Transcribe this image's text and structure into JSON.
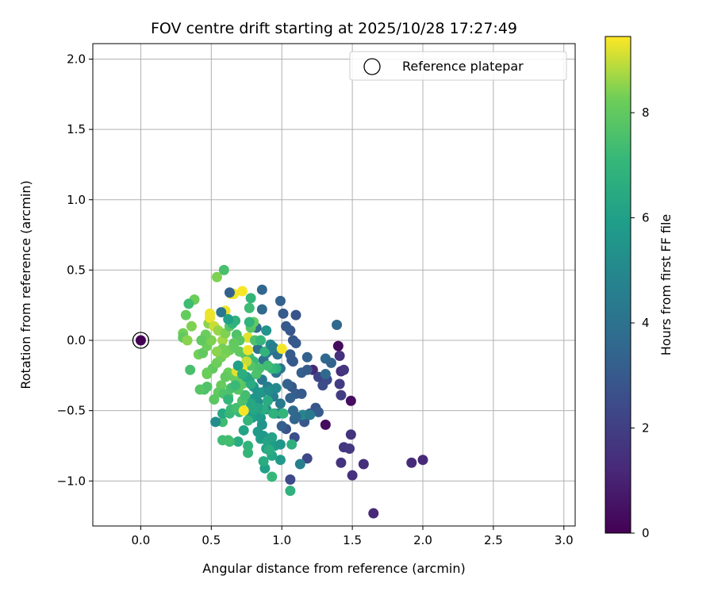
{
  "chart_data": {
    "type": "scatter",
    "title": "FOV centre drift starting at 2025/10/28 17:27:49",
    "xlabel": "Angular distance from reference (arcmin)",
    "ylabel": "Rotation from reference (arcmin)",
    "xlim": [
      -0.34,
      3.08
    ],
    "ylim": [
      -1.32,
      2.11
    ],
    "xticks": [
      0.0,
      0.5,
      1.0,
      1.5,
      2.0,
      2.5,
      3.0
    ],
    "xtick_labels": [
      "0.0",
      "0.5",
      "1.0",
      "1.5",
      "2.0",
      "2.5",
      "3.0"
    ],
    "yticks": [
      -1.0,
      -0.5,
      0.0,
      0.5,
      1.0,
      1.5,
      2.0
    ],
    "ytick_labels": [
      "−1.0",
      "−0.5",
      "0.0",
      "0.5",
      "1.0",
      "1.5",
      "2.0"
    ],
    "grid": true,
    "legend": {
      "position": "top-right",
      "entries": [
        "Reference platepar"
      ]
    },
    "colorbar": {
      "label": "Hours from first FF file",
      "range": [
        0,
        9.45
      ],
      "ticks": [
        0,
        2,
        4,
        6,
        8
      ],
      "tick_labels": [
        "0",
        "2",
        "4",
        "6",
        "8"
      ],
      "colormap": "viridis"
    },
    "reference_point": {
      "x": 0.0,
      "y": 0.0,
      "hours": 0.0
    },
    "points": [
      {
        "x": 1.65,
        "y": -1.23,
        "h": 1.2
      },
      {
        "x": 1.92,
        "y": -0.87,
        "h": 1.3
      },
      {
        "x": 2.0,
        "y": -0.85,
        "h": 1.2
      },
      {
        "x": 1.58,
        "y": -0.88,
        "h": 1.4
      },
      {
        "x": 1.5,
        "y": -0.96,
        "h": 1.5
      },
      {
        "x": 1.44,
        "y": -0.76,
        "h": 1.7
      },
      {
        "x": 1.48,
        "y": -0.77,
        "h": 1.8
      },
      {
        "x": 1.49,
        "y": -0.67,
        "h": 1.6
      },
      {
        "x": 1.42,
        "y": -0.87,
        "h": 1.6
      },
      {
        "x": 1.49,
        "y": -0.43,
        "h": 0.4
      },
      {
        "x": 1.31,
        "y": -0.6,
        "h": 0.3
      },
      {
        "x": 1.4,
        "y": -0.04,
        "h": 0.3
      },
      {
        "x": 1.42,
        "y": -0.22,
        "h": 1.4
      },
      {
        "x": 1.44,
        "y": -0.21,
        "h": 1.7
      },
      {
        "x": 1.42,
        "y": -0.39,
        "h": 1.9
      },
      {
        "x": 1.41,
        "y": -0.31,
        "h": 1.9
      },
      {
        "x": 1.41,
        "y": -0.11,
        "h": 1.5
      },
      {
        "x": 1.22,
        "y": -0.21,
        "h": 1.2
      },
      {
        "x": 1.26,
        "y": -0.26,
        "h": 2.2
      },
      {
        "x": 1.32,
        "y": -0.28,
        "h": 2.4
      },
      {
        "x": 1.29,
        "y": -0.32,
        "h": 2.5
      },
      {
        "x": 1.24,
        "y": -0.48,
        "h": 2.8
      },
      {
        "x": 1.26,
        "y": -0.51,
        "h": 3.0
      },
      {
        "x": 1.2,
        "y": -0.52,
        "h": 3.0
      },
      {
        "x": 1.16,
        "y": -0.58,
        "h": 2.9
      },
      {
        "x": 1.18,
        "y": -0.84,
        "h": 2.3
      },
      {
        "x": 1.06,
        "y": -0.99,
        "h": 2.4
      },
      {
        "x": 1.09,
        "y": -0.69,
        "h": 2.6
      },
      {
        "x": 1.03,
        "y": -0.63,
        "h": 2.7
      },
      {
        "x": 1.0,
        "y": -0.61,
        "h": 3.2
      },
      {
        "x": 1.13,
        "y": -0.88,
        "h": 4.6
      },
      {
        "x": 1.15,
        "y": -0.53,
        "h": 4.9
      },
      {
        "x": 1.2,
        "y": -0.53,
        "h": 4.3
      },
      {
        "x": 1.09,
        "y": -0.56,
        "h": 3.4
      },
      {
        "x": 1.1,
        "y": -0.54,
        "h": 3.5
      },
      {
        "x": 1.08,
        "y": -0.5,
        "h": 3.6
      },
      {
        "x": 1.06,
        "y": -0.41,
        "h": 3.3
      },
      {
        "x": 1.1,
        "y": -0.38,
        "h": 3.2
      },
      {
        "x": 1.14,
        "y": -0.38,
        "h": 3.0
      },
      {
        "x": 1.07,
        "y": -0.33,
        "h": 3.0
      },
      {
        "x": 1.04,
        "y": -0.31,
        "h": 3.3
      },
      {
        "x": 1.14,
        "y": -0.23,
        "h": 3.2
      },
      {
        "x": 1.18,
        "y": -0.21,
        "h": 3.1
      },
      {
        "x": 1.18,
        "y": -0.12,
        "h": 3.3
      },
      {
        "x": 1.31,
        "y": -0.24,
        "h": 3.6
      },
      {
        "x": 1.31,
        "y": -0.13,
        "h": 3.6
      },
      {
        "x": 1.35,
        "y": -0.16,
        "h": 3.4
      },
      {
        "x": 1.39,
        "y": 0.11,
        "h": 3.6
      },
      {
        "x": 1.1,
        "y": 0.18,
        "h": 2.8
      },
      {
        "x": 1.06,
        "y": 0.07,
        "h": 2.9
      },
      {
        "x": 1.08,
        "y": 0.0,
        "h": 2.9
      },
      {
        "x": 1.1,
        "y": -0.02,
        "h": 3.0
      },
      {
        "x": 1.06,
        "y": -0.1,
        "h": 3.1
      },
      {
        "x": 1.08,
        "y": -0.15,
        "h": 3.0
      },
      {
        "x": 1.07,
        "y": -0.14,
        "h": 3.0
      },
      {
        "x": 1.03,
        "y": 0.1,
        "h": 3.0
      },
      {
        "x": 1.01,
        "y": 0.19,
        "h": 3.1
      },
      {
        "x": 0.99,
        "y": 0.28,
        "h": 3.3
      },
      {
        "x": 0.86,
        "y": 0.36,
        "h": 3.5
      },
      {
        "x": 0.86,
        "y": 0.22,
        "h": 3.7
      },
      {
        "x": 0.82,
        "y": 0.09,
        "h": 3.8
      },
      {
        "x": 0.83,
        "y": -0.06,
        "h": 4.0
      },
      {
        "x": 0.87,
        "y": -0.14,
        "h": 4.1
      },
      {
        "x": 0.89,
        "y": -0.09,
        "h": 4.3
      },
      {
        "x": 0.92,
        "y": -0.07,
        "h": 4.2
      },
      {
        "x": 0.97,
        "y": -0.1,
        "h": 3.9
      },
      {
        "x": 0.99,
        "y": -0.2,
        "h": 4.2
      },
      {
        "x": 0.96,
        "y": -0.23,
        "h": 4.0
      },
      {
        "x": 0.86,
        "y": -0.28,
        "h": 4.3
      },
      {
        "x": 0.9,
        "y": -0.33,
        "h": 4.6
      },
      {
        "x": 0.94,
        "y": -0.4,
        "h": 4.5
      },
      {
        "x": 0.99,
        "y": -0.45,
        "h": 4.3
      },
      {
        "x": 0.95,
        "y": -0.52,
        "h": 4.6
      },
      {
        "x": 0.98,
        "y": -0.52,
        "h": 4.9
      },
      {
        "x": 0.89,
        "y": -0.49,
        "h": 5.1
      },
      {
        "x": 0.83,
        "y": -0.44,
        "h": 5.3
      },
      {
        "x": 0.82,
        "y": -0.4,
        "h": 5.5
      },
      {
        "x": 0.78,
        "y": -0.42,
        "h": 5.6
      },
      {
        "x": 0.8,
        "y": -0.33,
        "h": 5.7
      },
      {
        "x": 0.77,
        "y": -0.28,
        "h": 5.9
      },
      {
        "x": 0.83,
        "y": -0.37,
        "h": 5.5
      },
      {
        "x": 0.86,
        "y": -0.37,
        "h": 5.6
      },
      {
        "x": 0.91,
        "y": -0.36,
        "h": 5.2
      },
      {
        "x": 0.96,
        "y": -0.34,
        "h": 5.0
      },
      {
        "x": 0.77,
        "y": -0.51,
        "h": 5.8
      },
      {
        "x": 0.79,
        "y": -0.55,
        "h": 5.9
      },
      {
        "x": 0.82,
        "y": -0.53,
        "h": 6.0
      },
      {
        "x": 0.85,
        "y": -0.55,
        "h": 5.8
      },
      {
        "x": 0.86,
        "y": -0.6,
        "h": 5.5
      },
      {
        "x": 0.83,
        "y": -0.65,
        "h": 5.8
      },
      {
        "x": 0.85,
        "y": -0.7,
        "h": 6.0
      },
      {
        "x": 0.87,
        "y": -0.68,
        "h": 5.7
      },
      {
        "x": 0.89,
        "y": -0.77,
        "h": 6.1
      },
      {
        "x": 0.9,
        "y": -0.72,
        "h": 6.2
      },
      {
        "x": 0.93,
        "y": -0.69,
        "h": 6.1
      },
      {
        "x": 0.95,
        "y": -0.75,
        "h": 5.9
      },
      {
        "x": 0.99,
        "y": -0.74,
        "h": 5.6
      },
      {
        "x": 0.99,
        "y": -0.85,
        "h": 5.8
      },
      {
        "x": 0.93,
        "y": -0.82,
        "h": 6.3
      },
      {
        "x": 0.88,
        "y": -0.91,
        "h": 6.0
      },
      {
        "x": 0.87,
        "y": -0.86,
        "h": 6.5
      },
      {
        "x": 0.91,
        "y": -0.78,
        "h": 6.6
      },
      {
        "x": 0.93,
        "y": -0.97,
        "h": 7.1
      },
      {
        "x": 1.06,
        "y": -1.07,
        "h": 6.8
      },
      {
        "x": 1.07,
        "y": -0.74,
        "h": 6.7
      },
      {
        "x": 1.01,
        "y": -0.52,
        "h": 7.0
      },
      {
        "x": 0.94,
        "y": -0.52,
        "h": 6.8
      },
      {
        "x": 0.9,
        "y": -0.43,
        "h": 6.5
      },
      {
        "x": 0.87,
        "y": -0.49,
        "h": 6.6
      },
      {
        "x": 0.83,
        "y": -0.48,
        "h": 6.2
      },
      {
        "x": 0.8,
        "y": -0.49,
        "h": 6.3
      },
      {
        "x": 0.78,
        "y": -0.45,
        "h": 6.4
      },
      {
        "x": 0.76,
        "y": -0.57,
        "h": 7.0
      },
      {
        "x": 0.7,
        "y": -0.51,
        "h": 7.1
      },
      {
        "x": 0.73,
        "y": -0.64,
        "h": 6.2
      },
      {
        "x": 0.69,
        "y": -0.72,
        "h": 6.5
      },
      {
        "x": 0.76,
        "y": -0.75,
        "h": 6.9
      },
      {
        "x": 0.76,
        "y": -0.8,
        "h": 7.0
      },
      {
        "x": 0.63,
        "y": -0.72,
        "h": 7.2
      },
      {
        "x": 0.58,
        "y": -0.71,
        "h": 7.3
      },
      {
        "x": 0.62,
        "y": -0.71,
        "h": 7.4
      },
      {
        "x": 0.58,
        "y": -0.58,
        "h": 7.3
      },
      {
        "x": 0.53,
        "y": -0.58,
        "h": 5.2
      },
      {
        "x": 0.58,
        "y": -0.52,
        "h": 6.4
      },
      {
        "x": 0.63,
        "y": -0.52,
        "h": 7.1
      },
      {
        "x": 0.64,
        "y": -0.49,
        "h": 7.2
      },
      {
        "x": 0.68,
        "y": -0.48,
        "h": 7.4
      },
      {
        "x": 0.72,
        "y": -0.43,
        "h": 7.6
      },
      {
        "x": 0.74,
        "y": -0.39,
        "h": 7.4
      },
      {
        "x": 0.69,
        "y": -0.35,
        "h": 7.8
      },
      {
        "x": 0.72,
        "y": -0.31,
        "h": 7.9
      },
      {
        "x": 0.68,
        "y": -0.29,
        "h": 8.0
      },
      {
        "x": 0.66,
        "y": -0.26,
        "h": 8.1
      },
      {
        "x": 0.62,
        "y": -0.23,
        "h": 8.2
      },
      {
        "x": 0.6,
        "y": -0.26,
        "h": 8.0
      },
      {
        "x": 0.57,
        "y": -0.32,
        "h": 8.1
      },
      {
        "x": 0.55,
        "y": -0.37,
        "h": 8.0
      },
      {
        "x": 0.52,
        "y": -0.42,
        "h": 7.9
      },
      {
        "x": 0.47,
        "y": -0.33,
        "h": 7.7
      },
      {
        "x": 0.45,
        "y": -0.35,
        "h": 7.6
      },
      {
        "x": 0.42,
        "y": -0.35,
        "h": 7.8
      },
      {
        "x": 0.47,
        "y": -0.23,
        "h": 8.1
      },
      {
        "x": 0.51,
        "y": -0.2,
        "h": 8.0
      },
      {
        "x": 0.54,
        "y": -0.16,
        "h": 8.2
      },
      {
        "x": 0.57,
        "y": -0.12,
        "h": 8.3
      },
      {
        "x": 0.6,
        "y": -0.09,
        "h": 8.4
      },
      {
        "x": 0.63,
        "y": -0.07,
        "h": 8.3
      },
      {
        "x": 0.66,
        "y": -0.05,
        "h": 8.1
      },
      {
        "x": 0.7,
        "y": -0.08,
        "h": 8.0
      },
      {
        "x": 0.74,
        "y": -0.1,
        "h": 7.9
      },
      {
        "x": 0.77,
        "y": -0.12,
        "h": 7.4
      },
      {
        "x": 0.8,
        "y": -0.15,
        "h": 7.2
      },
      {
        "x": 0.84,
        "y": -0.2,
        "h": 7.5
      },
      {
        "x": 0.82,
        "y": -0.24,
        "h": 7.6
      },
      {
        "x": 0.78,
        "y": -0.18,
        "h": 7.7
      },
      {
        "x": 0.75,
        "y": -0.15,
        "h": 9.0
      },
      {
        "x": 0.72,
        "y": -0.2,
        "h": 9.3
      },
      {
        "x": 0.7,
        "y": -0.22,
        "h": 9.4
      },
      {
        "x": 0.68,
        "y": -0.22,
        "h": 9.2
      },
      {
        "x": 0.73,
        "y": -0.5,
        "h": 9.4
      },
      {
        "x": 0.76,
        "y": -0.07,
        "h": 9.3
      },
      {
        "x": 0.76,
        "y": 0.02,
        "h": 9.2
      },
      {
        "x": 0.81,
        "y": 0.0,
        "h": 7.6
      },
      {
        "x": 0.85,
        "y": 0.0,
        "h": 7.1
      },
      {
        "x": 0.88,
        "y": -0.08,
        "h": 6.9
      },
      {
        "x": 0.92,
        "y": -0.03,
        "h": 5.0
      },
      {
        "x": 0.94,
        "y": -0.05,
        "h": 4.5
      },
      {
        "x": 0.96,
        "y": -0.2,
        "h": 6.6
      },
      {
        "x": 0.93,
        "y": -0.2,
        "h": 7.0
      },
      {
        "x": 0.9,
        "y": -0.18,
        "h": 7.3
      },
      {
        "x": 1.0,
        "y": -0.06,
        "h": 9.4
      },
      {
        "x": 0.89,
        "y": 0.07,
        "h": 5.5
      },
      {
        "x": 0.78,
        "y": 0.09,
        "h": 7.8
      },
      {
        "x": 0.8,
        "y": 0.13,
        "h": 8.1
      },
      {
        "x": 0.77,
        "y": 0.23,
        "h": 7.3
      },
      {
        "x": 0.78,
        "y": 0.3,
        "h": 7.0
      },
      {
        "x": 0.72,
        "y": 0.35,
        "h": 9.4
      },
      {
        "x": 0.66,
        "y": 0.33,
        "h": 9.4
      },
      {
        "x": 0.64,
        "y": 0.33,
        "h": 9.3
      },
      {
        "x": 0.6,
        "y": 0.21,
        "h": 9.3
      },
      {
        "x": 0.63,
        "y": 0.34,
        "h": 3.3
      },
      {
        "x": 0.57,
        "y": 0.2,
        "h": 4.2
      },
      {
        "x": 0.59,
        "y": 0.5,
        "h": 7.5
      },
      {
        "x": 0.54,
        "y": 0.45,
        "h": 8.4
      },
      {
        "x": 0.38,
        "y": 0.29,
        "h": 8.2
      },
      {
        "x": 0.34,
        "y": 0.26,
        "h": 7.3
      },
      {
        "x": 0.32,
        "y": 0.18,
        "h": 8.1
      },
      {
        "x": 0.36,
        "y": 0.1,
        "h": 8.4
      },
      {
        "x": 0.3,
        "y": 0.05,
        "h": 8.3
      },
      {
        "x": 0.3,
        "y": 0.02,
        "h": 8.0
      },
      {
        "x": 0.33,
        "y": 0.0,
        "h": 8.5
      },
      {
        "x": 0.41,
        "y": -0.1,
        "h": 8.3
      },
      {
        "x": 0.44,
        "y": -0.09,
        "h": 8.0
      },
      {
        "x": 0.47,
        "y": -0.04,
        "h": 8.2
      },
      {
        "x": 0.5,
        "y": 0.0,
        "h": 8.4
      },
      {
        "x": 0.46,
        "y": 0.04,
        "h": 8.2
      },
      {
        "x": 0.43,
        "y": 0.0,
        "h": 8.0
      },
      {
        "x": 0.48,
        "y": 0.12,
        "h": 8.5
      },
      {
        "x": 0.49,
        "y": 0.16,
        "h": 9.3
      },
      {
        "x": 0.49,
        "y": 0.19,
        "h": 9.3
      },
      {
        "x": 0.52,
        "y": 0.1,
        "h": 9.0
      },
      {
        "x": 0.55,
        "y": 0.07,
        "h": 8.6
      },
      {
        "x": 0.58,
        "y": 0.0,
        "h": 8.7
      },
      {
        "x": 0.6,
        "y": 0.05,
        "h": 8.4
      },
      {
        "x": 0.63,
        "y": 0.1,
        "h": 7.8
      },
      {
        "x": 0.65,
        "y": 0.12,
        "h": 7.0
      },
      {
        "x": 0.67,
        "y": 0.14,
        "h": 6.8
      },
      {
        "x": 0.62,
        "y": 0.15,
        "h": 6.0
      },
      {
        "x": 0.68,
        "y": 0.04,
        "h": 7.6
      },
      {
        "x": 0.7,
        "y": 0.0,
        "h": 7.8
      },
      {
        "x": 0.66,
        "y": -0.02,
        "h": 8.0
      },
      {
        "x": 0.58,
        "y": -0.06,
        "h": 8.3
      },
      {
        "x": 0.54,
        "y": -0.08,
        "h": 8.5
      },
      {
        "x": 0.35,
        "y": -0.21,
        "h": 7.5
      },
      {
        "x": 0.47,
        "y": -0.24,
        "h": 8.2
      },
      {
        "x": 0.62,
        "y": -0.4,
        "h": 7.8
      },
      {
        "x": 0.59,
        "y": -0.38,
        "h": 7.6
      },
      {
        "x": 0.64,
        "y": -0.34,
        "h": 7.5
      },
      {
        "x": 0.67,
        "y": -0.32,
        "h": 7.2
      },
      {
        "x": 0.62,
        "y": -0.42,
        "h": 7.0
      },
      {
        "x": 0.78,
        "y": -0.31,
        "h": 6.5
      },
      {
        "x": 0.75,
        "y": -0.26,
        "h": 6.2
      },
      {
        "x": 0.69,
        "y": -0.18,
        "h": 6.0
      },
      {
        "x": 0.77,
        "y": 0.13,
        "h": 6.9
      },
      {
        "x": 0.72,
        "y": -0.24,
        "h": 6.6
      }
    ]
  }
}
